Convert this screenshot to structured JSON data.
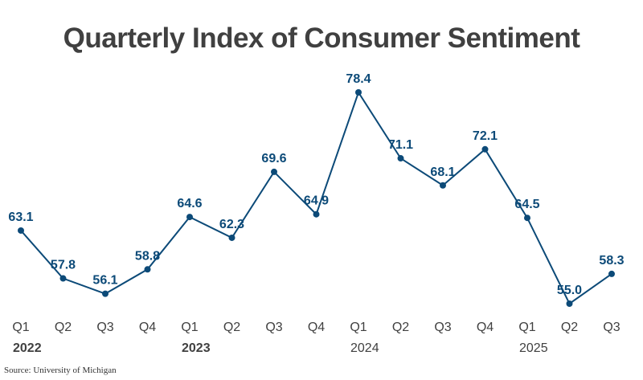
{
  "chart_data": {
    "type": "line",
    "title": "Quarterly Index of Consumer Sentiment",
    "categories": [
      "Q1",
      "Q2",
      "Q3",
      "Q4",
      "Q1",
      "Q2",
      "Q3",
      "Q4",
      "Q1",
      "Q2",
      "Q3",
      "Q4",
      "Q1",
      "Q2",
      "Q3"
    ],
    "year_labels": [
      {
        "label": "2022",
        "index": 0
      },
      {
        "label": "2023",
        "index": 4
      },
      {
        "label": "2024",
        "index": 8
      },
      {
        "label": "2025",
        "index": 12
      }
    ],
    "values": [
      63.1,
      57.8,
      56.1,
      58.8,
      64.6,
      62.3,
      69.6,
      64.9,
      78.4,
      71.1,
      68.1,
      72.1,
      64.5,
      55.0,
      58.3
    ],
    "ylim": [
      55.0,
      78.4
    ],
    "grid": false,
    "legend": "none",
    "line_color": "#0c4a78",
    "label_color": "#0c4a78"
  },
  "source": "Source: University of Michigan"
}
